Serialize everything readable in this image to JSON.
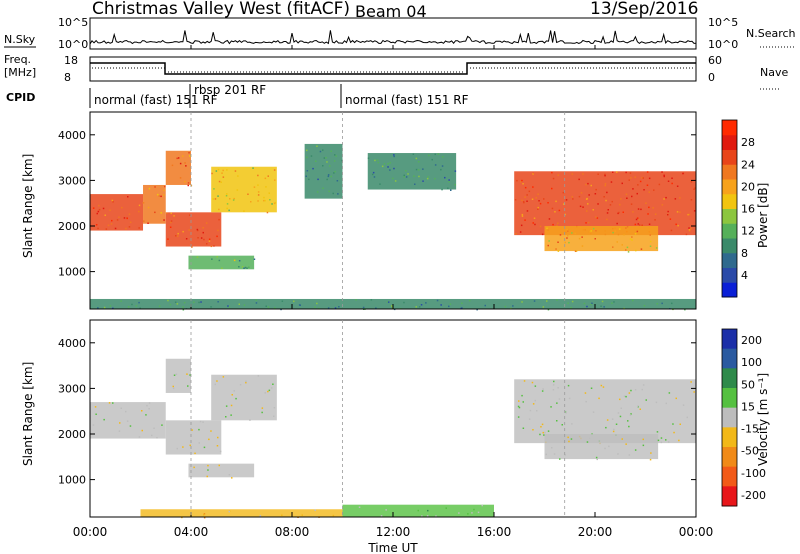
{
  "header": {
    "station": "Christmas Valley West (fitACF)",
    "beam": "Beam 04",
    "date": "13/Sep/2016"
  },
  "sky_noise": {
    "left_label": "N.Sky",
    "right_label": "N.Search",
    "ticks_left": [
      "10^5",
      "10^0"
    ],
    "ticks_right": [
      "10^5",
      "10^0"
    ]
  },
  "freq_panel": {
    "left_label_1": "Freq.",
    "left_label_2": "[MHz]",
    "ticks_left": [
      "18",
      "8"
    ],
    "right_label": "Nave",
    "ticks_right": [
      "60",
      "0"
    ]
  },
  "cpid": {
    "label": "CPID",
    "segments": [
      {
        "text": "normal (fast) 151 RF",
        "start_h": 0,
        "end_h": 4
      },
      {
        "text": "rbsp 201 RF",
        "start_h": 4,
        "end_h": 10
      },
      {
        "text": "normal (fast) 151 RF",
        "start_h": 10,
        "end_h": 24
      }
    ]
  },
  "time_axis": {
    "label": "Time UT",
    "ticks": [
      "00:00",
      "04:00",
      "08:00",
      "12:00",
      "16:00",
      "20:00",
      "00:00"
    ]
  },
  "power_panel": {
    "ylabel": "Slant Range [km]",
    "yticks": [
      "1000",
      "2000",
      "3000",
      "4000"
    ],
    "colorbar_label": "Power [dB]",
    "colorbar_ticks": [
      "4",
      "8",
      "12",
      "16",
      "20",
      "24",
      "28"
    ],
    "colors": [
      "#0a1fd6",
      "#2a4aa8",
      "#2f6a8e",
      "#3a8a6a",
      "#55b05a",
      "#8cc63f",
      "#f1c40f",
      "#f7a21b",
      "#f07820",
      "#e8451a",
      "#e01a0f",
      "#ff2a00"
    ]
  },
  "velocity_panel": {
    "ylabel": "Slant Range [km]",
    "yticks": [
      "1000",
      "2000",
      "3000",
      "4000"
    ],
    "colorbar_label": "Velocity [m s⁻¹]",
    "colorbar_ticks": [
      "200",
      "100",
      "50",
      "15",
      "-15",
      "-50",
      "-100",
      "-200"
    ],
    "colors": [
      "#1b2fa8",
      "#2a5aa0",
      "#2e8a4a",
      "#55c040",
      "#bdbdbd",
      "#f2b818",
      "#f08a18",
      "#f25a18",
      "#e8161a"
    ]
  },
  "chart_data": [
    {
      "type": "heatmap",
      "title": "Power",
      "x_range_hours": [
        0,
        24
      ],
      "y_range_km": [
        180,
        4500
      ],
      "colorbar_range_db": [
        0,
        32
      ],
      "regions": [
        {
          "t0": 0.0,
          "t1": 2.1,
          "r0": 1900,
          "r1": 2700,
          "db": 25
        },
        {
          "t0": 2.1,
          "t1": 3.0,
          "r0": 2050,
          "r1": 2900,
          "db": 22
        },
        {
          "t0": 3.0,
          "t1": 4.0,
          "r0": 2900,
          "r1": 3650,
          "db": 23
        },
        {
          "t0": 3.0,
          "t1": 5.2,
          "r0": 1550,
          "r1": 2300,
          "db": 26
        },
        {
          "t0": 4.8,
          "t1": 7.4,
          "r0": 2300,
          "r1": 3300,
          "db": 18
        },
        {
          "t0": 3.9,
          "t1": 6.5,
          "r0": 1050,
          "r1": 1350,
          "db": 11
        },
        {
          "t0": 8.5,
          "t1": 10.0,
          "r0": 2600,
          "r1": 3800,
          "db": 9
        },
        {
          "t0": 11.0,
          "t1": 14.5,
          "r0": 2800,
          "r1": 3600,
          "db": 10
        },
        {
          "t0": 16.8,
          "t1": 24.0,
          "r0": 1800,
          "r1": 3200,
          "db": 27
        },
        {
          "t0": 18.0,
          "t1": 22.5,
          "r0": 1450,
          "r1": 2000,
          "db": 21
        },
        {
          "t0": 0.0,
          "t1": 24.0,
          "r0": 180,
          "r1": 400,
          "db": 10
        }
      ]
    },
    {
      "type": "heatmap",
      "title": "Velocity",
      "x_range_hours": [
        0,
        24
      ],
      "y_range_km": [
        180,
        4500
      ],
      "colorbar_range_ms": [
        -250,
        250
      ],
      "regions": [
        {
          "t0": 0.0,
          "t1": 3.0,
          "r0": 1900,
          "r1": 2700,
          "v": 0
        },
        {
          "t0": 3.0,
          "t1": 4.0,
          "r0": 2900,
          "r1": 3650,
          "v": 0
        },
        {
          "t0": 3.0,
          "t1": 5.2,
          "r0": 1550,
          "r1": 2300,
          "v": 0
        },
        {
          "t0": 4.8,
          "t1": 7.4,
          "r0": 2300,
          "r1": 3300,
          "v": 5
        },
        {
          "t0": 3.9,
          "t1": 6.5,
          "r0": 1050,
          "r1": 1350,
          "v": 30
        },
        {
          "t0": 16.8,
          "t1": 24.0,
          "r0": 1800,
          "r1": 3200,
          "v": 0
        },
        {
          "t0": 18.0,
          "t1": 22.5,
          "r0": 1450,
          "r1": 2000,
          "v": 0
        },
        {
          "t0": 2.0,
          "t1": 10.0,
          "r0": 180,
          "r1": 350,
          "v": -60
        },
        {
          "t0": 10.0,
          "t1": 16.0,
          "r0": 180,
          "r1": 450,
          "v": 40
        }
      ]
    }
  ]
}
